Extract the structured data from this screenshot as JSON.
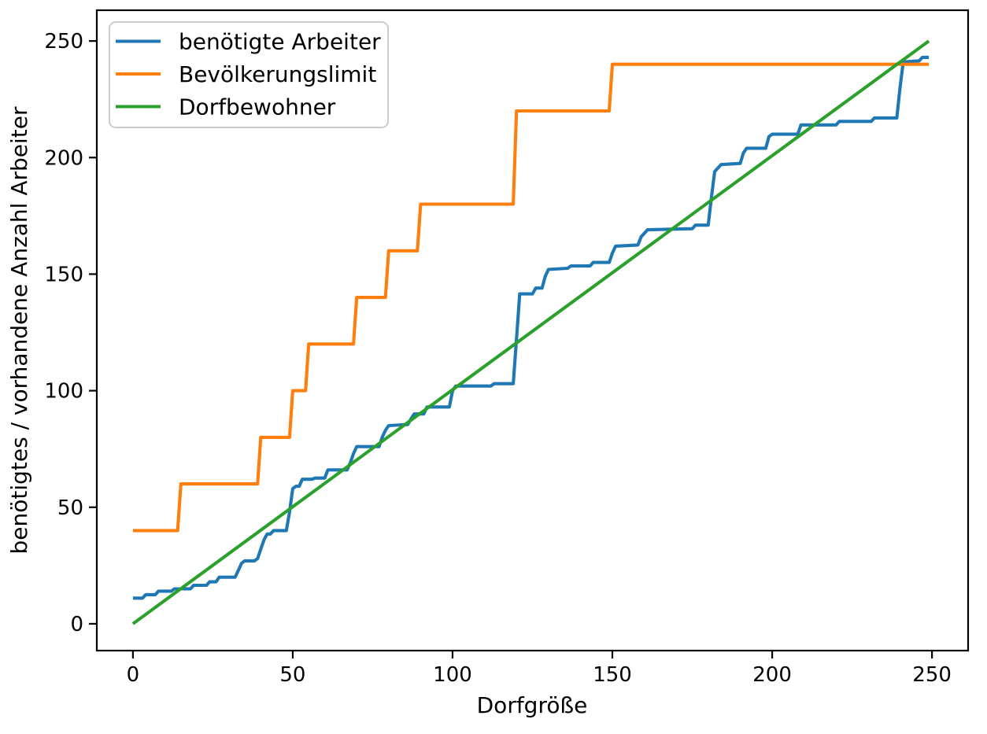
{
  "chart_data": {
    "type": "line",
    "title": "",
    "xlabel": "Dorfgröße",
    "ylabel": "benötigtes / vorhandene Anzahl Arbeiter",
    "xlim": [
      -11.3,
      261.3
    ],
    "ylim": [
      -11.5,
      263.2
    ],
    "xticks": [
      0,
      50,
      100,
      150,
      200,
      250
    ],
    "yticks": [
      0,
      50,
      100,
      150,
      200,
      250
    ],
    "grid": false,
    "legend_position": "upper-left",
    "colors": {
      "axis": "#000000",
      "legend_border": "#cccccc",
      "background": "#ffffff"
    },
    "series": [
      {
        "name": "benötigte Arbeiter",
        "color": "#1f77b4",
        "points": [
          [
            0,
            11
          ],
          [
            3,
            11
          ],
          [
            4,
            12.5
          ],
          [
            7,
            12.5
          ],
          [
            8,
            14
          ],
          [
            12,
            14
          ],
          [
            13,
            15
          ],
          [
            18,
            15
          ],
          [
            19,
            16.5
          ],
          [
            23,
            16.5
          ],
          [
            24,
            18
          ],
          [
            26,
            18
          ],
          [
            27,
            20
          ],
          [
            32,
            20
          ],
          [
            33,
            23
          ],
          [
            34,
            26
          ],
          [
            35,
            27
          ],
          [
            38,
            27
          ],
          [
            39,
            28
          ],
          [
            40,
            32
          ],
          [
            41,
            36
          ],
          [
            42,
            38.5
          ],
          [
            43,
            38.5
          ],
          [
            44,
            40
          ],
          [
            48,
            40
          ],
          [
            49,
            48
          ],
          [
            50,
            58
          ],
          [
            51,
            59
          ],
          [
            52,
            59
          ],
          [
            53,
            62
          ],
          [
            56,
            62
          ],
          [
            57,
            62.5
          ],
          [
            60,
            62.5
          ],
          [
            61,
            66
          ],
          [
            67,
            66
          ],
          [
            68,
            69
          ],
          [
            69,
            73
          ],
          [
            70,
            76
          ],
          [
            77,
            76
          ],
          [
            78,
            80
          ],
          [
            79,
            83
          ],
          [
            80,
            85
          ],
          [
            86,
            85.5
          ],
          [
            87,
            88
          ],
          [
            88,
            90
          ],
          [
            91,
            90
          ],
          [
            92,
            93
          ],
          [
            99,
            93
          ],
          [
            100,
            100
          ],
          [
            101,
            102
          ],
          [
            112,
            102
          ],
          [
            113,
            103
          ],
          [
            119,
            103
          ],
          [
            120,
            122
          ],
          [
            121,
            141.5
          ],
          [
            125,
            141.5
          ],
          [
            126,
            144
          ],
          [
            128,
            144
          ],
          [
            129,
            149
          ],
          [
            130,
            152
          ],
          [
            136,
            152.5
          ],
          [
            137,
            153.5
          ],
          [
            143,
            153.5
          ],
          [
            144,
            155
          ],
          [
            149,
            155
          ],
          [
            150,
            159
          ],
          [
            151,
            162
          ],
          [
            158,
            162.5
          ],
          [
            159,
            166
          ],
          [
            161,
            169
          ],
          [
            175,
            169.5
          ],
          [
            176,
            171
          ],
          [
            180,
            171
          ],
          [
            181,
            183
          ],
          [
            182,
            194
          ],
          [
            184,
            197
          ],
          [
            190,
            197.5
          ],
          [
            191,
            202
          ],
          [
            192,
            204
          ],
          [
            198,
            204
          ],
          [
            199,
            209
          ],
          [
            200,
            210
          ],
          [
            208,
            210
          ],
          [
            209,
            214
          ],
          [
            220,
            214
          ],
          [
            221,
            215.5
          ],
          [
            231,
            215.5
          ],
          [
            232,
            217
          ],
          [
            239,
            217
          ],
          [
            240,
            230
          ],
          [
            241,
            241
          ],
          [
            246,
            241.5
          ],
          [
            247,
            243
          ],
          [
            249,
            243
          ]
        ]
      },
      {
        "name": "Bevölkerungslimit",
        "color": "#ff7f0e",
        "points": [
          [
            0,
            40
          ],
          [
            14,
            40
          ],
          [
            15,
            60
          ],
          [
            39,
            60
          ],
          [
            40,
            80
          ],
          [
            49,
            80
          ],
          [
            50,
            100
          ],
          [
            54,
            100
          ],
          [
            55,
            120
          ],
          [
            69,
            120
          ],
          [
            70,
            140
          ],
          [
            79,
            140
          ],
          [
            80,
            160
          ],
          [
            89,
            160
          ],
          [
            90,
            180
          ],
          [
            119,
            180
          ],
          [
            120,
            220
          ],
          [
            149,
            220
          ],
          [
            150,
            240
          ],
          [
            249,
            240
          ]
        ]
      },
      {
        "name": "Dorfbewohner",
        "color": "#2ca02c",
        "points": [
          [
            0,
            0
          ],
          [
            249,
            250
          ]
        ]
      }
    ]
  }
}
